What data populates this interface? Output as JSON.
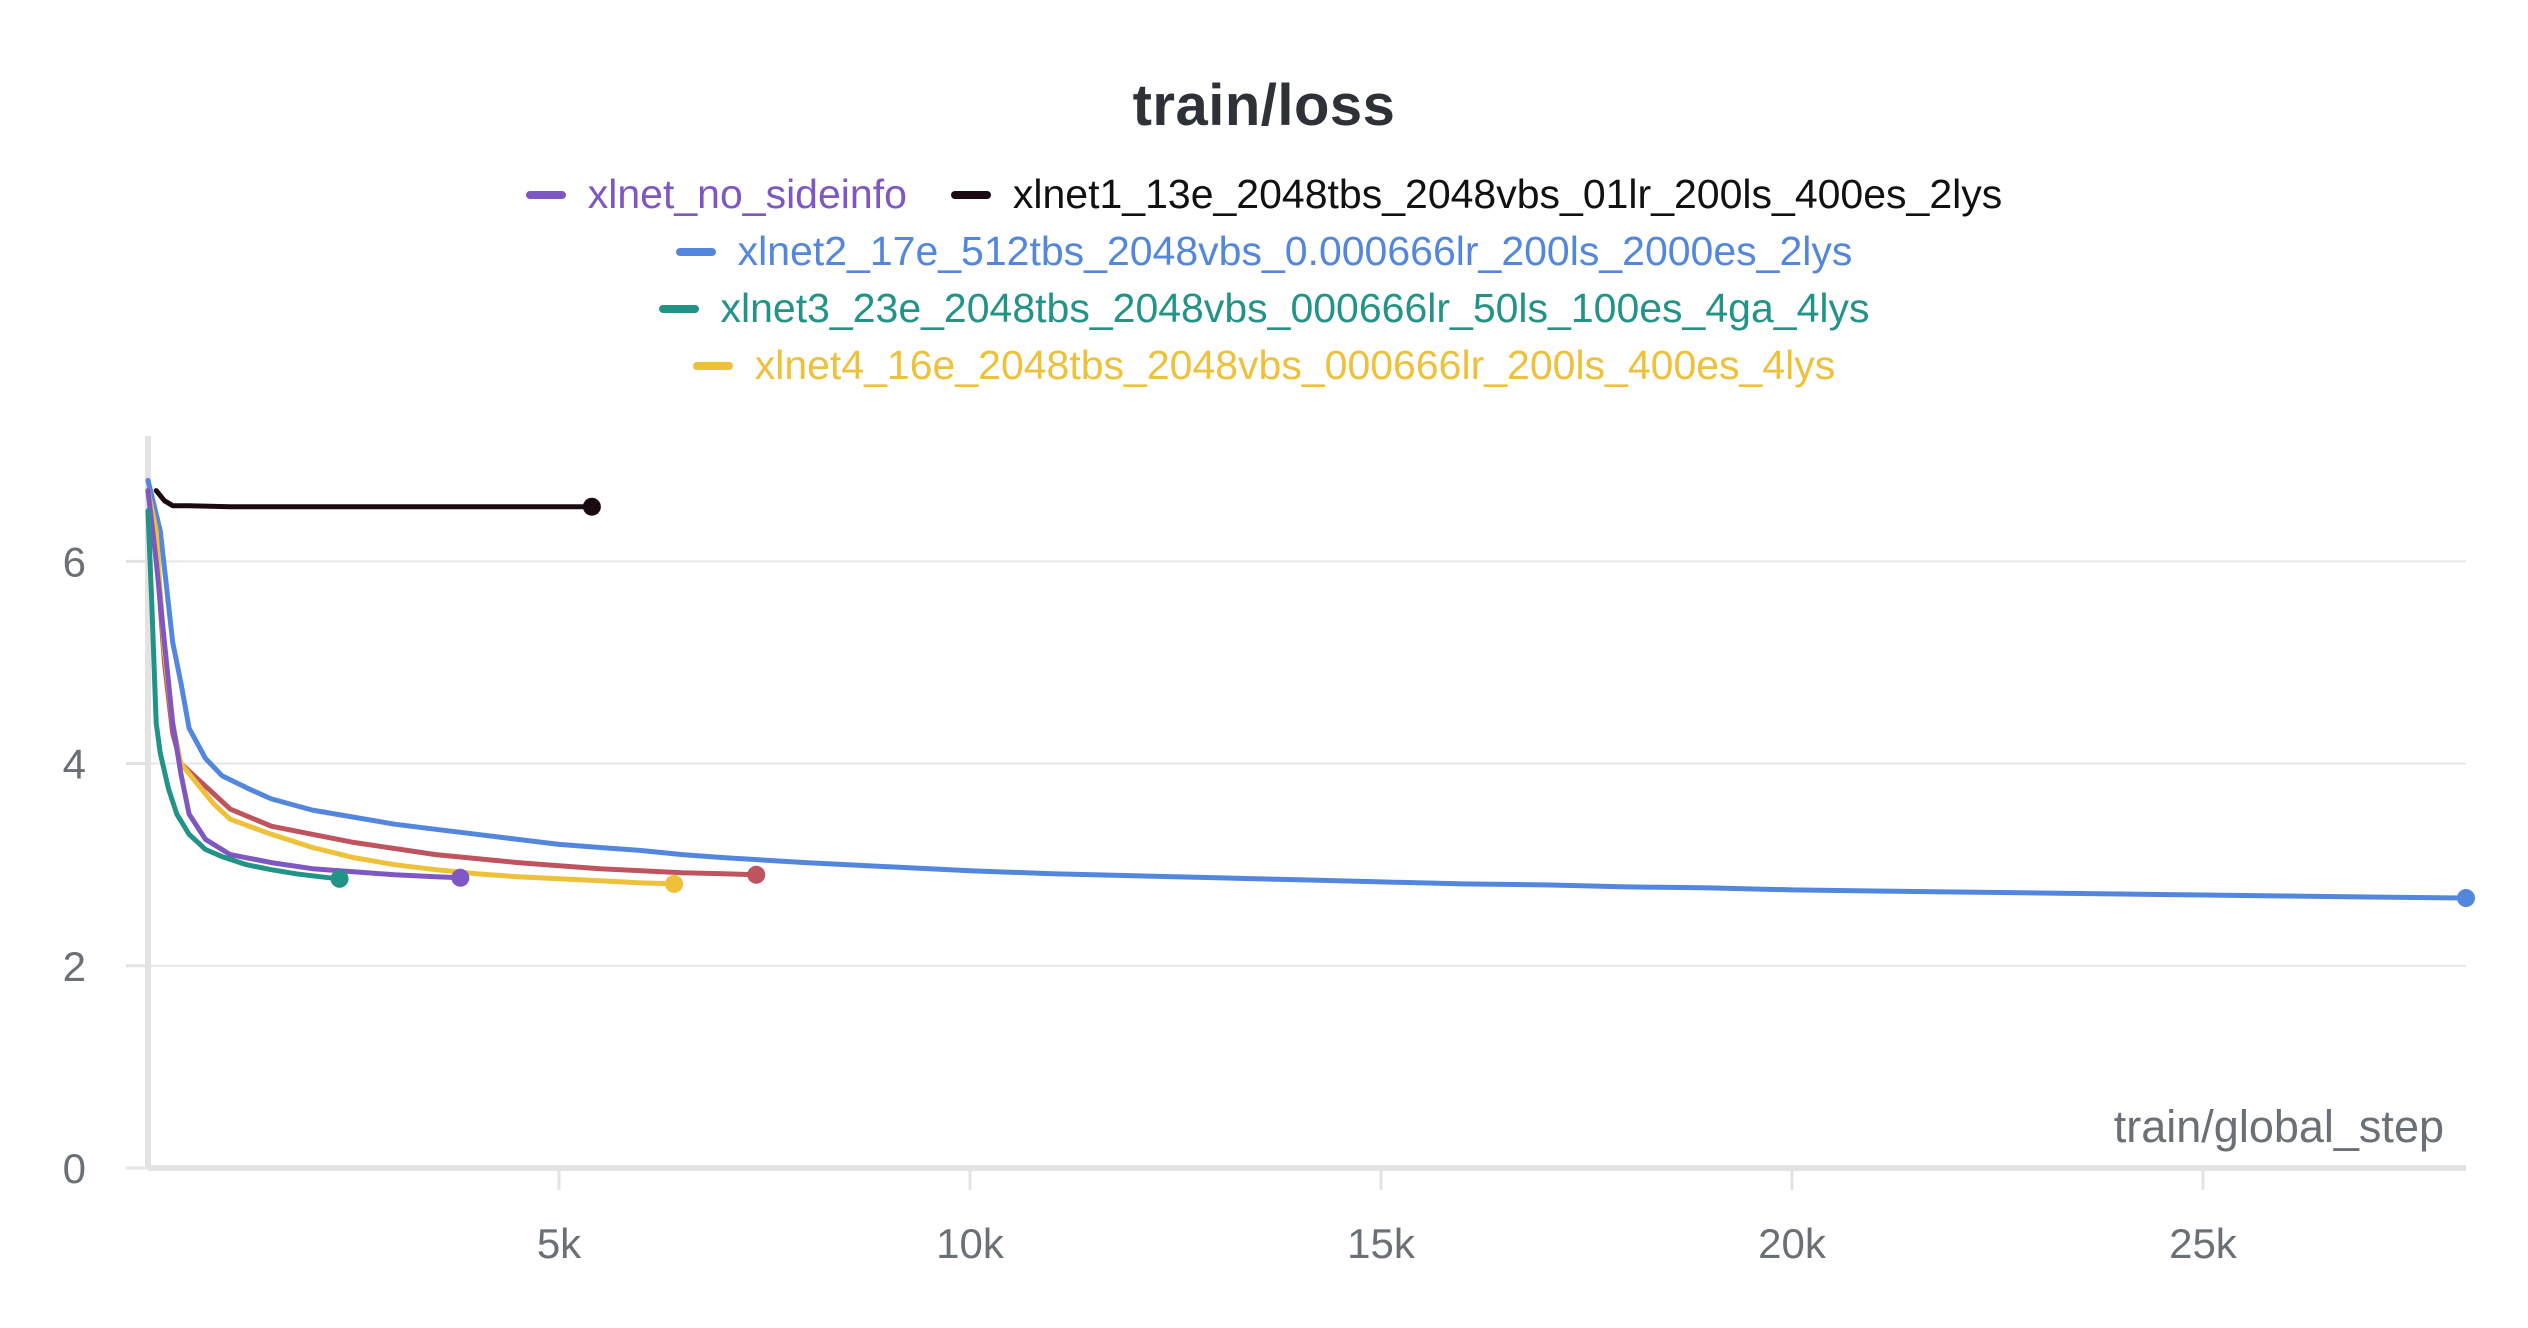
{
  "chart_data": {
    "type": "line",
    "title": "train/loss",
    "xlabel": "train/global_step",
    "ylabel": "",
    "xlim": [
      0,
      28200
    ],
    "ylim": [
      0,
      7.2
    ],
    "x_ticks": [
      {
        "value": 5000,
        "label": "5k"
      },
      {
        "value": 10000,
        "label": "10k"
      },
      {
        "value": 15000,
        "label": "15k"
      },
      {
        "value": 20000,
        "label": "20k"
      },
      {
        "value": 25000,
        "label": "25k"
      }
    ],
    "y_ticks": [
      {
        "value": 0,
        "label": "0"
      },
      {
        "value": 2,
        "label": "2"
      },
      {
        "value": 4,
        "label": "4"
      },
      {
        "value": 6,
        "label": "6"
      }
    ],
    "grid": true,
    "legend_position": "top-center",
    "legend_rows": [
      [
        0,
        1
      ],
      [
        2
      ],
      [
        3
      ],
      [
        4
      ]
    ],
    "series": [
      {
        "name": "xlnet_no_sideinfo",
        "color": "#7e57c2",
        "x": [
          0,
          100,
          200,
          300,
          400,
          500,
          700,
          1000,
          1500,
          2000,
          2500,
          3000,
          3500,
          3800
        ],
        "y": [
          6.7,
          6.0,
          5.2,
          4.4,
          3.9,
          3.5,
          3.25,
          3.1,
          3.02,
          2.96,
          2.93,
          2.9,
          2.88,
          2.87
        ]
      },
      {
        "name": "xlnet1_13e_2048tbs_2048vbs_01lr_200ls_400es_2lys",
        "color": "#1c0a12",
        "x": [
          100,
          200,
          300,
          500,
          1000,
          2000,
          3000,
          4000,
          5000,
          5400
        ],
        "y": [
          6.7,
          6.6,
          6.55,
          6.55,
          6.54,
          6.54,
          6.54,
          6.54,
          6.54,
          6.54
        ]
      },
      {
        "name": "xlnet2_17e_512tbs_2048vbs_0.000666lr_200ls_2000es_2lys",
        "color": "#5387dd",
        "x": [
          0,
          150,
          300,
          400,
          500,
          700,
          900,
          1200,
          1500,
          2000,
          2500,
          3000,
          3500,
          4000,
          4500,
          5000,
          5500,
          6000,
          6500,
          7000,
          8000,
          9000,
          10000,
          11000,
          12000,
          13000,
          14000,
          15000,
          16000,
          17000,
          18000,
          19000,
          20000,
          21000,
          22000,
          23000,
          24000,
          25000,
          26000,
          27000,
          28200
        ],
        "y": [
          6.8,
          6.3,
          5.2,
          4.8,
          4.35,
          4.05,
          3.88,
          3.76,
          3.65,
          3.54,
          3.47,
          3.4,
          3.35,
          3.3,
          3.25,
          3.2,
          3.17,
          3.14,
          3.1,
          3.07,
          3.02,
          2.98,
          2.94,
          2.91,
          2.89,
          2.87,
          2.85,
          2.83,
          2.81,
          2.8,
          2.78,
          2.77,
          2.75,
          2.74,
          2.73,
          2.72,
          2.71,
          2.7,
          2.69,
          2.68,
          2.67
        ]
      },
      {
        "name": "xlnet3_23e_2048tbs_2048vbs_000666lr_50ls_100es_4ga_4lys",
        "color": "#229487",
        "x": [
          0,
          50,
          100,
          150,
          250,
          350,
          500,
          700,
          900,
          1200,
          1500,
          1800,
          2100,
          2330
        ],
        "y": [
          6.5,
          5.5,
          4.4,
          4.1,
          3.75,
          3.5,
          3.3,
          3.15,
          3.08,
          3.0,
          2.95,
          2.91,
          2.88,
          2.86
        ]
      },
      {
        "name": "xlnet4_16e_2048tbs_2048vbs_000666lr_200ls_400es_4lys",
        "color": "#efc039",
        "x": [
          0,
          100,
          200,
          300,
          400,
          600,
          800,
          1000,
          1500,
          2000,
          2500,
          3000,
          3500,
          4000,
          4500,
          5000,
          5500,
          6000,
          6400
        ],
        "y": [
          6.7,
          6.3,
          5.1,
          4.4,
          4.0,
          3.8,
          3.6,
          3.45,
          3.3,
          3.17,
          3.07,
          3.0,
          2.95,
          2.91,
          2.88,
          2.86,
          2.84,
          2.82,
          2.81
        ]
      },
      {
        "name": "",
        "color": "#c0545e",
        "x": [
          0,
          100,
          200,
          300,
          400,
          600,
          800,
          1000,
          1500,
          2000,
          2500,
          3000,
          3500,
          4000,
          4500,
          5000,
          5500,
          6000,
          6500,
          7000,
          7400
        ],
        "y": [
          6.7,
          6.1,
          5.0,
          4.3,
          4.0,
          3.85,
          3.7,
          3.55,
          3.38,
          3.3,
          3.22,
          3.16,
          3.1,
          3.06,
          3.02,
          2.99,
          2.96,
          2.94,
          2.92,
          2.91,
          2.9
        ]
      }
    ]
  }
}
